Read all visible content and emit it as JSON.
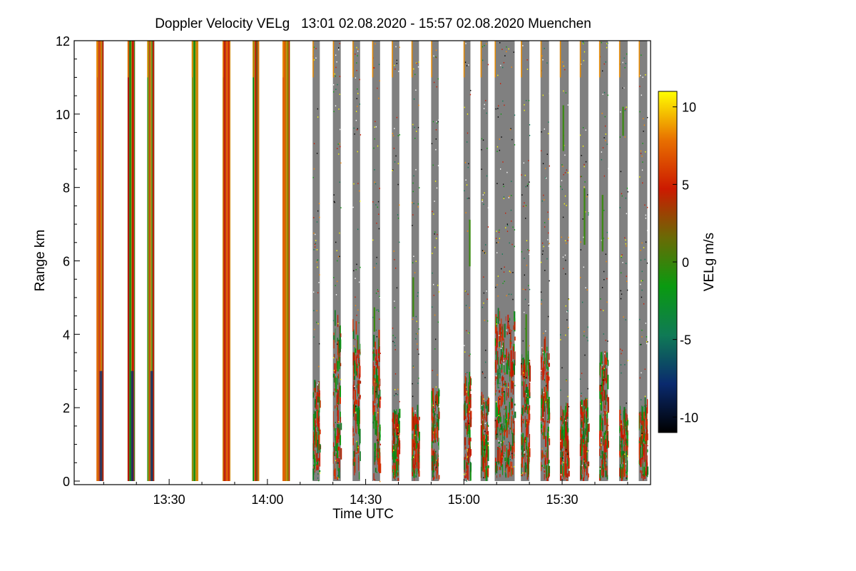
{
  "chart_data": {
    "type": "heatmap",
    "title": "Doppler Velocity VELg   13:01 02.08.2020 - 15:57 02.08.2020 Muenchen",
    "xlabel": "Time UTC",
    "ylabel": "Range km",
    "xlim_minutes": [
      781,
      957
    ],
    "x_ticks": [
      {
        "minutes": 810,
        "label": "13:30"
      },
      {
        "minutes": 840,
        "label": "14:00"
      },
      {
        "minutes": 870,
        "label": "14:30"
      },
      {
        "minutes": 900,
        "label": "15:00"
      },
      {
        "minutes": 930,
        "label": "15:30"
      }
    ],
    "ylim": [
      0,
      12
    ],
    "y_ticks": [
      0,
      2,
      4,
      6,
      8,
      10,
      12
    ],
    "colorbar": {
      "label": "VELg m/s",
      "range": [
        -11,
        11
      ],
      "ticks": [
        10,
        5,
        0,
        -5,
        -10
      ],
      "stops": [
        "#000000",
        "#0a2a6e",
        "#0f7a55",
        "#0a9a10",
        "#6a6a05",
        "#cc1a00",
        "#e87000",
        "#ffff00"
      ]
    },
    "profile_groups_minutes": [
      [
        787.8,
        790.0
      ],
      [
        797.3,
        799.6
      ],
      [
        803.3,
        805.5
      ],
      [
        816.9,
        818.9
      ],
      [
        826.3,
        828.7
      ],
      [
        835.5,
        837.5
      ],
      [
        844.6,
        846.9
      ],
      [
        853.8,
        856.0
      ],
      [
        860.0,
        862.4
      ],
      [
        866.0,
        868.3
      ],
      [
        872.0,
        874.4
      ],
      [
        878.0,
        880.3
      ],
      [
        884.0,
        886.3
      ],
      [
        890.0,
        892.3
      ],
      [
        899.9,
        902.0
      ],
      [
        905.1,
        907.4
      ],
      [
        909.4,
        915.5
      ],
      [
        917.4,
        920.0
      ],
      [
        923.4,
        926.0
      ],
      [
        929.3,
        932.0
      ],
      [
        935.4,
        938.0
      ],
      [
        941.3,
        944.0
      ],
      [
        947.4,
        950.0
      ],
      [
        953.4,
        956.0
      ]
    ],
    "background_value": "no data (white)",
    "noise_color": "#808080"
  }
}
